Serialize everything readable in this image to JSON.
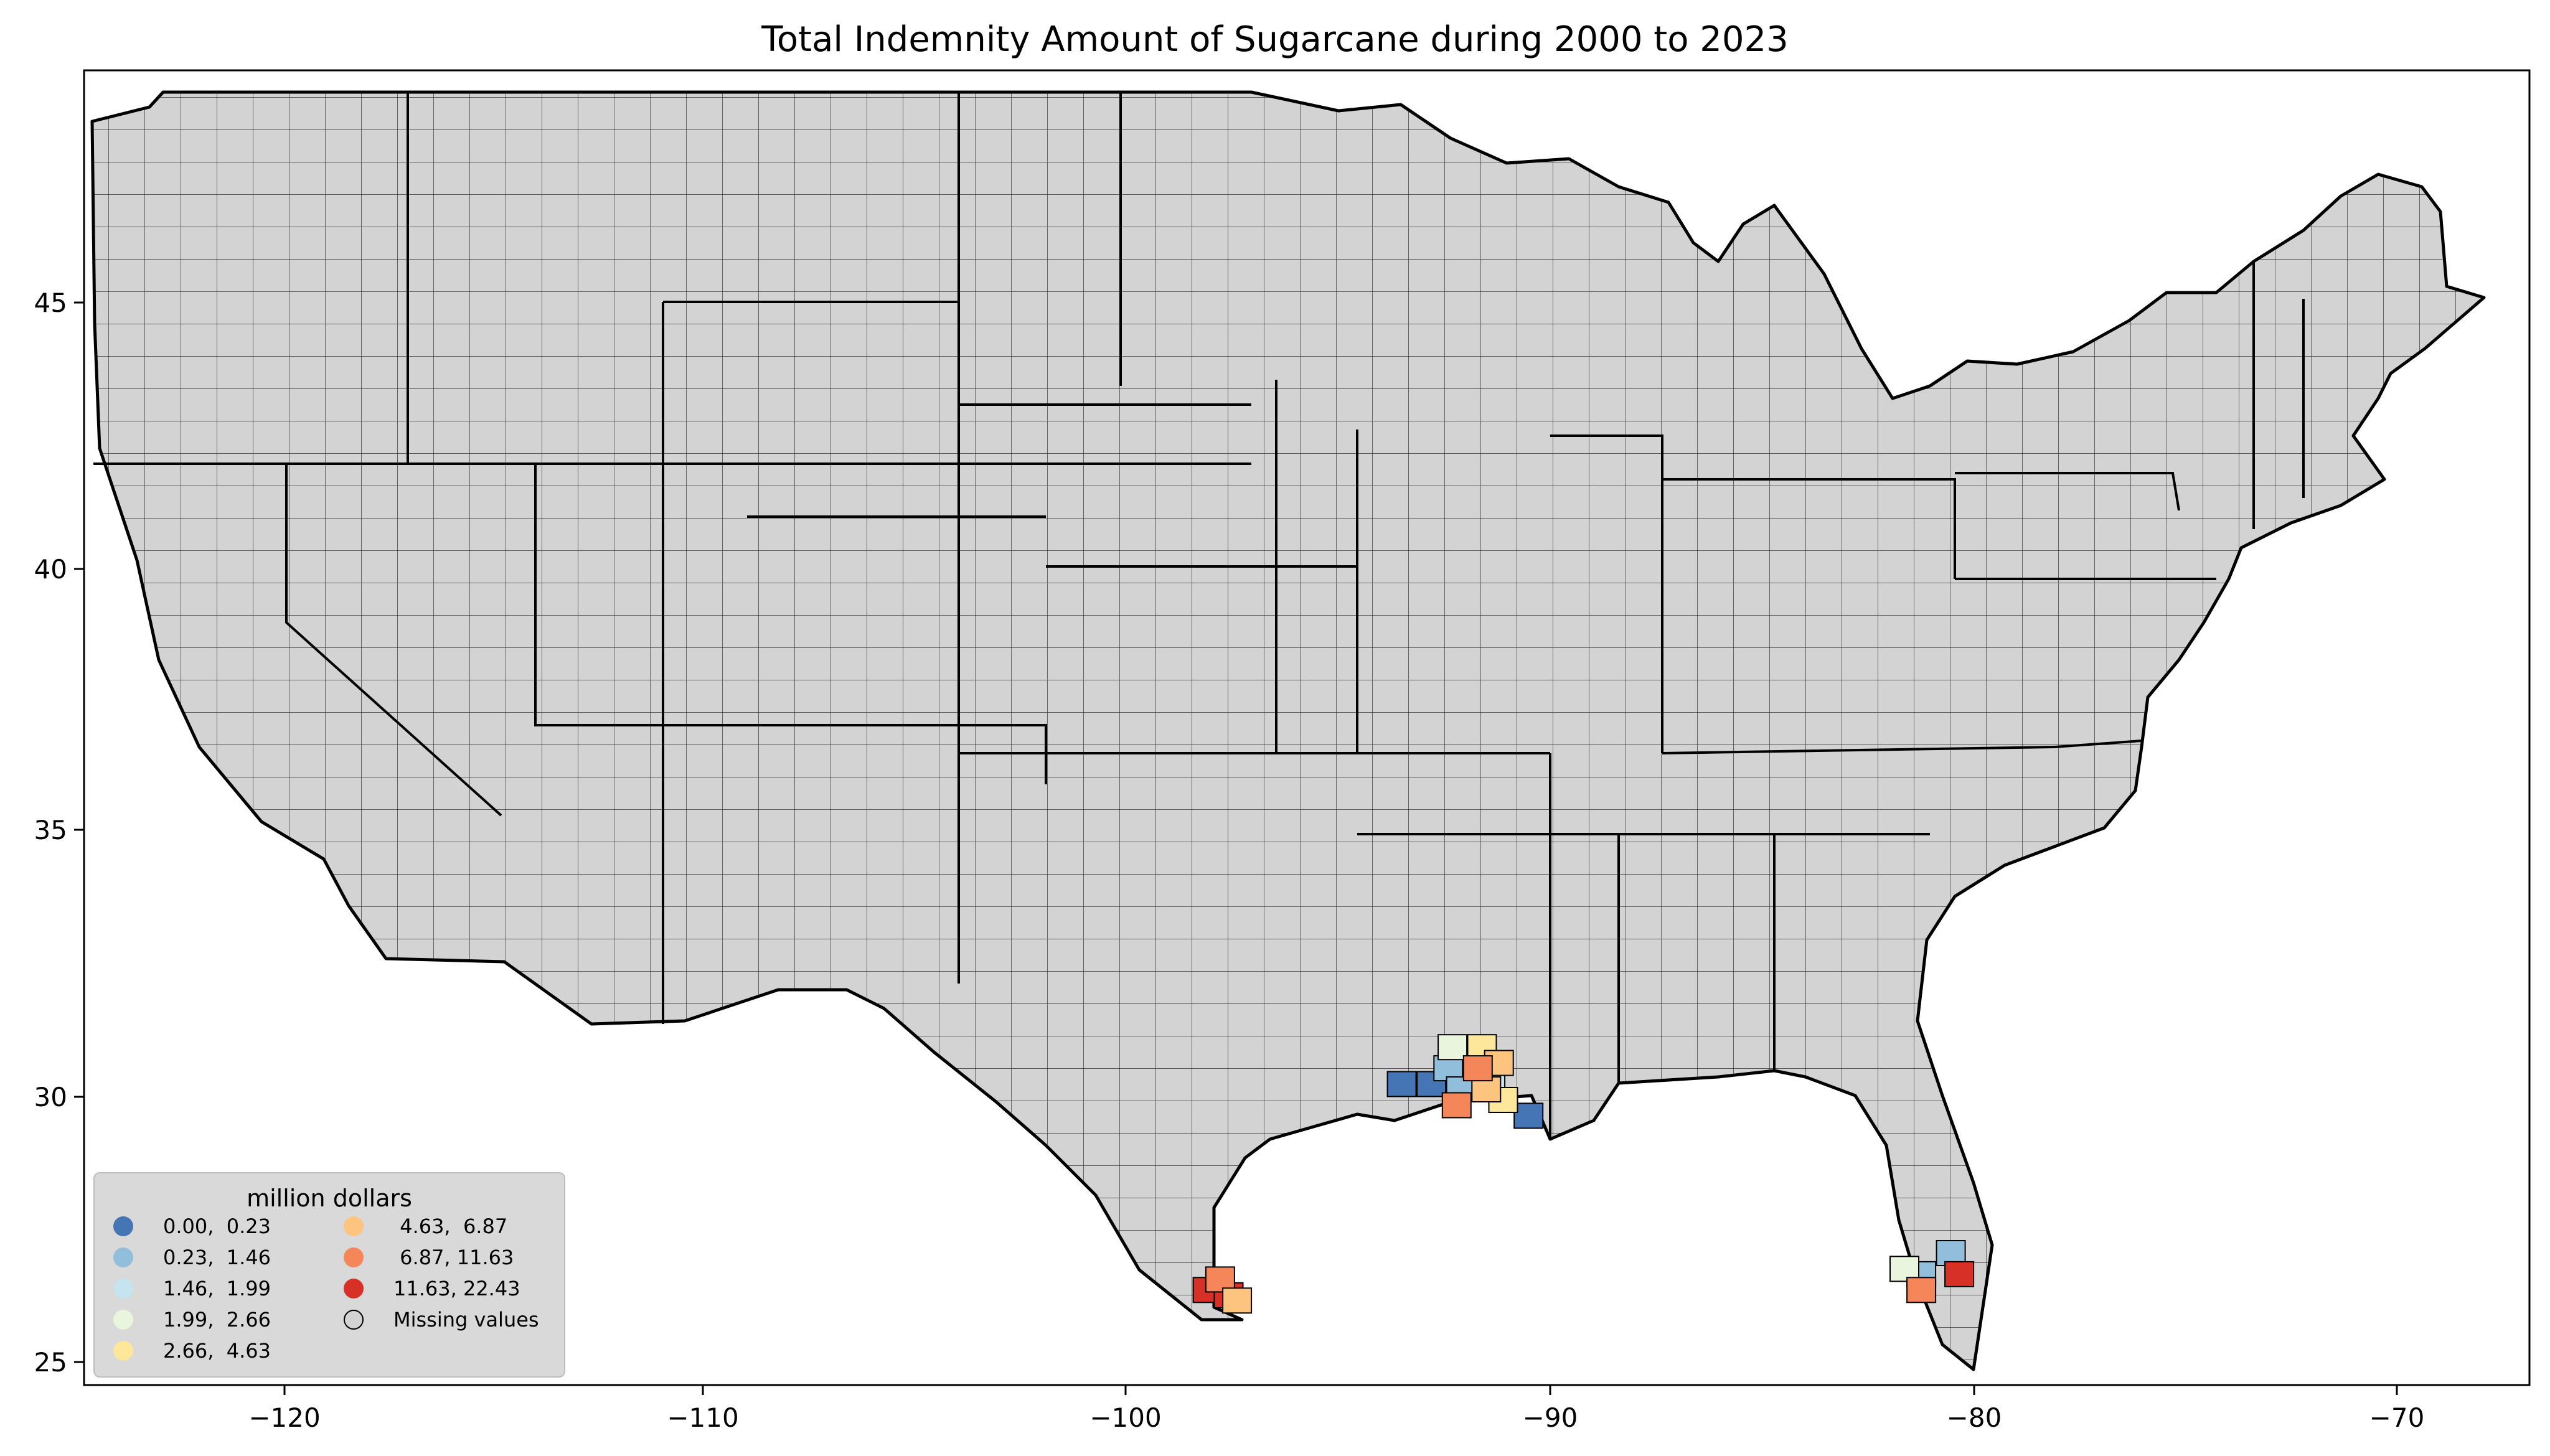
{
  "title": "Total Indemnity Amount of Sugarcane during 2000 to 2023",
  "x_ticks": [
    "−120",
    "−110",
    "−100",
    "−90",
    "−80",
    "−70"
  ],
  "y_ticks": [
    "45",
    "40",
    "35",
    "30",
    "25"
  ],
  "legend": {
    "title": "million dollars",
    "items": [
      {
        "label": "0.00,  0.23",
        "color": "#4575b4"
      },
      {
        "label": "0.23,  1.46",
        "color": "#91bfdb"
      },
      {
        "label": "1.46,  1.99",
        "color": "#c6e4ef"
      },
      {
        "label": "1.99,  2.66",
        "color": "#e9f5dc"
      },
      {
        "label": "2.66,  4.63",
        "color": "#fee79a"
      },
      {
        "label": " 4.63,  6.87",
        "color": "#fdc47f"
      },
      {
        "label": " 6.87, 11.63",
        "color": "#f4865a"
      },
      {
        "label": "11.63, 22.43",
        "color": "#d73027"
      },
      {
        "label": "Missing values",
        "color": "#d3d3d3"
      }
    ]
  },
  "map_data": {
    "x_range": [
      -124.8,
      -66.9
    ],
    "y_range": [
      24.5,
      49.4
    ],
    "counties": [
      {
        "lon": -98.2,
        "lat": 26.3,
        "bin": 7
      },
      {
        "lon": -97.7,
        "lat": 26.2,
        "bin": 7
      },
      {
        "lon": -97.9,
        "lat": 26.5,
        "bin": 6
      },
      {
        "lon": -97.5,
        "lat": 26.1,
        "bin": 5
      },
      {
        "lon": -93.6,
        "lat": 30.2,
        "bin": 0
      },
      {
        "lon": -92.9,
        "lat": 30.2,
        "bin": 0
      },
      {
        "lon": -90.6,
        "lat": 29.6,
        "bin": 0
      },
      {
        "lon": -92.5,
        "lat": 30.5,
        "bin": 1
      },
      {
        "lon": -92.2,
        "lat": 30.1,
        "bin": 1
      },
      {
        "lon": -91.5,
        "lat": 30.3,
        "bin": 2
      },
      {
        "lon": -92.4,
        "lat": 30.9,
        "bin": 3
      },
      {
        "lon": -91.7,
        "lat": 30.9,
        "bin": 4
      },
      {
        "lon": -91.2,
        "lat": 29.9,
        "bin": 4
      },
      {
        "lon": -91.3,
        "lat": 30.6,
        "bin": 5
      },
      {
        "lon": -91.6,
        "lat": 30.1,
        "bin": 5
      },
      {
        "lon": -92.3,
        "lat": 29.8,
        "bin": 6
      },
      {
        "lon": -91.8,
        "lat": 30.5,
        "bin": 6
      },
      {
        "lon": -81.3,
        "lat": 26.6,
        "bin": 1
      },
      {
        "lon": -80.6,
        "lat": 27.0,
        "bin": 1
      },
      {
        "lon": -81.7,
        "lat": 26.7,
        "bin": 3
      },
      {
        "lon": -81.3,
        "lat": 26.3,
        "bin": 6
      },
      {
        "lon": -80.4,
        "lat": 26.6,
        "bin": 7
      }
    ]
  }
}
